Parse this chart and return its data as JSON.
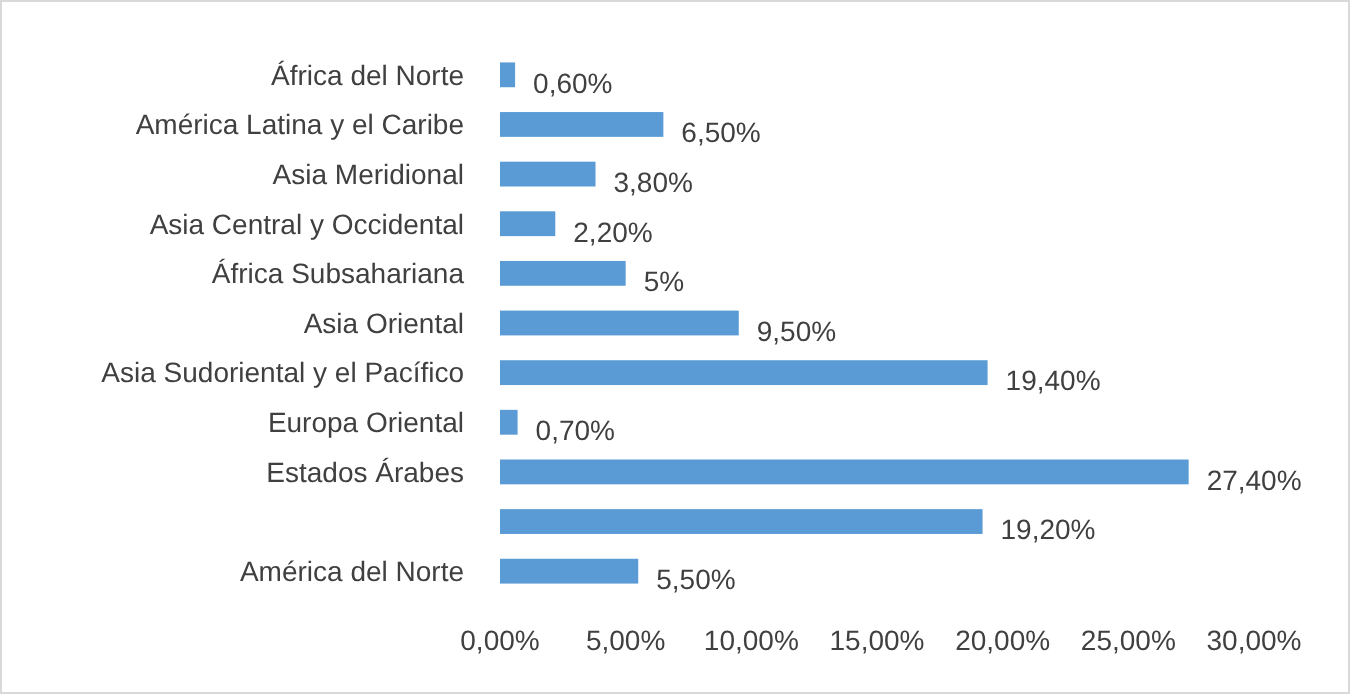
{
  "chart_data": {
    "type": "bar",
    "orientation": "horizontal",
    "categories": [
      "África del Norte",
      "América Latina y el Caribe",
      "Asia Meridional",
      "Asia Central y Occidental ",
      "África Subsahariana",
      "Asia Oriental ",
      "Asia Sudoriental y el Pacífico",
      "Europa Oriental",
      "Estados Árabes",
      null,
      "América del Norte"
    ],
    "values": [
      0.6,
      6.5,
      3.8,
      2.2,
      5,
      9.5,
      19.4,
      0.7,
      27.4,
      19.2,
      5.5
    ],
    "value_labels": [
      "0,60%",
      "6,50%",
      "3,80%",
      "2,20%",
      "5%",
      "9,50%",
      "19,40%",
      "0,70%",
      "27,40%",
      "19,20%",
      "5,50%"
    ],
    "color": "#5b9bd5",
    "xlim": [
      0,
      30
    ],
    "xticks": [
      {
        "value": 0,
        "label": "0,00%"
      },
      {
        "value": 5,
        "label": "5,00%"
      },
      {
        "value": 10,
        "label": "10,00%"
      },
      {
        "value": 15,
        "label": "15,00%"
      },
      {
        "value": 20,
        "label": "20,00%"
      },
      {
        "value": 25,
        "label": "25,00%"
      },
      {
        "value": 30,
        "label": "30,00%"
      }
    ],
    "grid": false
  }
}
